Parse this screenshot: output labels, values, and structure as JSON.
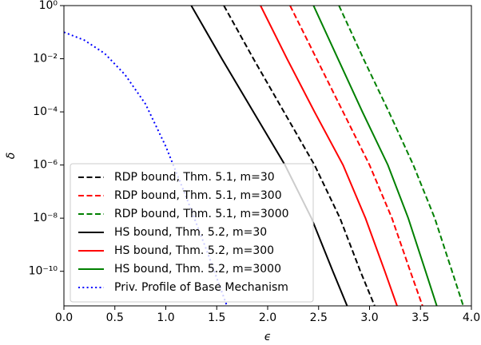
{
  "chart_data": {
    "type": "line",
    "xlabel": "ϵ",
    "ylabel": "δ",
    "xlim": [
      0,
      4
    ],
    "ylim": [
      5e-12,
      1
    ],
    "yscale": "log",
    "grid": false,
    "legend": "lower left",
    "xticks": [
      {
        "value": 0,
        "label": "0.0"
      },
      {
        "value": 0.5,
        "label": "0.5"
      },
      {
        "value": 1,
        "label": "1.0"
      },
      {
        "value": 1.5,
        "label": "1.5"
      },
      {
        "value": 2,
        "label": "2.0"
      },
      {
        "value": 2.5,
        "label": "2.5"
      },
      {
        "value": 3,
        "label": "3.0"
      },
      {
        "value": 3.5,
        "label": "3.5"
      },
      {
        "value": 4,
        "label": "4.0"
      }
    ],
    "yticks": [
      {
        "value": 1,
        "label": "10⁰"
      },
      {
        "value": 0.01,
        "label": "10⁻²"
      },
      {
        "value": 0.0001,
        "label": "10⁻⁴"
      },
      {
        "value": 1e-06,
        "label": "10⁻⁶"
      },
      {
        "value": 1e-08,
        "label": "10⁻⁸"
      },
      {
        "value": 1e-10,
        "label": "10⁻¹⁰"
      }
    ],
    "series": [
      {
        "name": "RDP bound, Thm. 5.1, m=30",
        "color": "#000000",
        "linestyle": "dashed",
        "x": [
          1.57,
          1.86,
          2.16,
          2.46,
          2.71,
          2.91,
          3.05
        ],
        "values": [
          1,
          0.01,
          0.0001,
          1e-06,
          1e-08,
          1e-10,
          5e-12
        ]
      },
      {
        "name": "RDP bound, Thm. 5.1, m=300",
        "color": "#ff0000",
        "linestyle": "dashed",
        "x": [
          2.22,
          2.48,
          2.74,
          3.0,
          3.22,
          3.4,
          3.52
        ],
        "values": [
          1,
          0.01,
          0.0001,
          1e-06,
          1e-08,
          1e-10,
          5e-12
        ]
      },
      {
        "name": "RDP bound, Thm. 5.1, m=3000",
        "color": "#008000",
        "linestyle": "dashed",
        "x": [
          2.7,
          2.94,
          3.19,
          3.43,
          3.64,
          3.81,
          3.92
        ],
        "values": [
          1,
          0.01,
          0.0001,
          1e-06,
          1e-08,
          1e-10,
          5e-12
        ]
      },
      {
        "name": "HS bound, Thm. 5.2, m=30",
        "color": "#000000",
        "linestyle": "solid",
        "x": [
          1.25,
          1.55,
          1.86,
          2.17,
          2.43,
          2.64,
          2.78
        ],
        "values": [
          1,
          0.01,
          0.0001,
          1e-06,
          1e-08,
          1e-10,
          5e-12
        ]
      },
      {
        "name": "HS bound, Thm. 5.2, m=300",
        "color": "#ff0000",
        "linestyle": "solid",
        "x": [
          1.93,
          2.19,
          2.46,
          2.74,
          2.96,
          3.15,
          3.27
        ],
        "values": [
          1,
          0.01,
          0.0001,
          1e-06,
          1e-08,
          1e-10,
          5e-12
        ]
      },
      {
        "name": "HS bound, Thm. 5.2, m=3000",
        "color": "#008000",
        "linestyle": "solid",
        "x": [
          2.45,
          2.69,
          2.93,
          3.18,
          3.38,
          3.55,
          3.66
        ],
        "values": [
          1,
          0.01,
          0.0001,
          1e-06,
          1e-08,
          1e-10,
          5e-12
        ]
      },
      {
        "name": "Priv. Profile of Base Mechanism",
        "color": "#0000ff",
        "linestyle": "dotted",
        "x": [
          0,
          0.2,
          0.4,
          0.6,
          0.8,
          1.0,
          1.2,
          1.4,
          1.6
        ],
        "values": [
          0.1,
          0.05,
          0.0158,
          0.0025,
          0.0002,
          5e-06,
          6.3e-08,
          6.3e-10,
          5e-12
        ]
      }
    ]
  }
}
